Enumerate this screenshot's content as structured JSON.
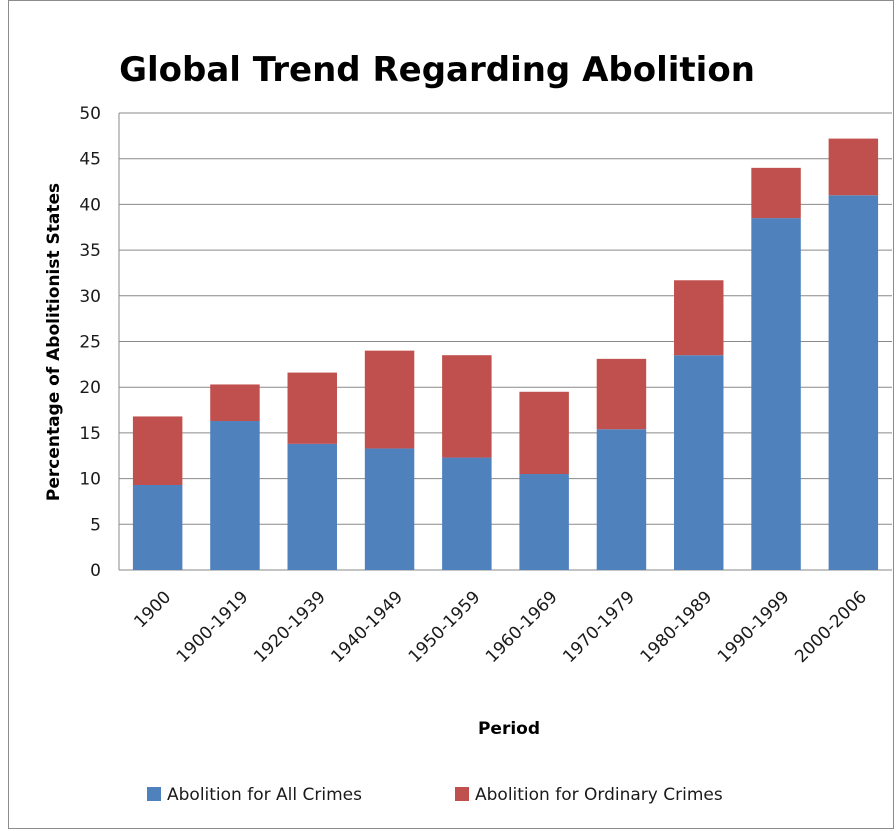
{
  "chart_data": {
    "type": "bar",
    "stacked": true,
    "title": "Global Trend Regarding Abolition",
    "xlabel": "Period",
    "ylabel": "Percentage of Abolitionist  States",
    "ylim": [
      0,
      50
    ],
    "yticks": [
      "0",
      "5",
      "10",
      "15",
      "20",
      "25",
      "30",
      "35",
      "40",
      "45",
      "50"
    ],
    "grid": true,
    "legend_position": "bottom",
    "categories": [
      "1900",
      "1900-1919",
      "1920-1939",
      "1940-1949",
      "1950-1959",
      "1960-1969",
      "1970-1979",
      "1980-1989",
      "1990-1999",
      "2000-2006"
    ],
    "series": [
      {
        "name": "Abolition for All Crimes",
        "color": "#4f81bd",
        "values": [
          9.3,
          16.3,
          13.8,
          13.3,
          12.3,
          10.5,
          15.4,
          23.5,
          38.5,
          41.0
        ]
      },
      {
        "name": "Abolition for Ordinary Crimes",
        "color": "#c0504d",
        "values": [
          7.5,
          4.0,
          7.8,
          10.7,
          11.2,
          9.0,
          7.7,
          8.2,
          5.5,
          6.2
        ]
      }
    ]
  }
}
